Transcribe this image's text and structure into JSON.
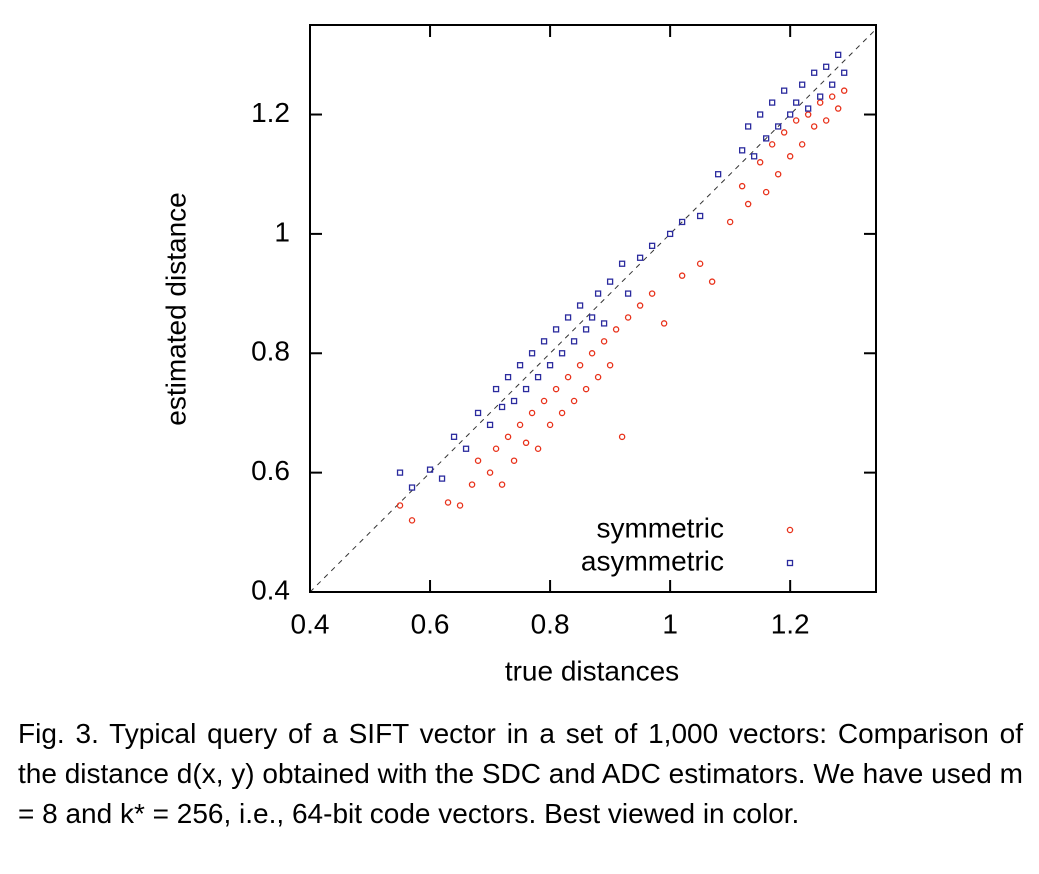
{
  "chart_data": {
    "type": "scatter",
    "xlabel": "true distances",
    "ylabel": "estimated distance",
    "xlim": [
      0.4,
      1.343
    ],
    "ylim": [
      0.4,
      1.35
    ],
    "xticks": [
      0.4,
      0.6,
      0.8,
      1,
      1.2
    ],
    "yticks": [
      0.4,
      0.6,
      0.8,
      1,
      1.2
    ],
    "legend": "lower right",
    "series": [
      {
        "name": "symmetric",
        "color": "#e8311a",
        "marker": "circle",
        "x": [
          0.55,
          0.57,
          0.63,
          0.65,
          0.67,
          0.68,
          0.7,
          0.71,
          0.72,
          0.73,
          0.74,
          0.75,
          0.76,
          0.77,
          0.78,
          0.79,
          0.8,
          0.81,
          0.82,
          0.83,
          0.84,
          0.85,
          0.86,
          0.87,
          0.88,
          0.89,
          0.9,
          0.91,
          0.92,
          0.93,
          0.95,
          0.97,
          0.99,
          1.02,
          1.05,
          1.07,
          1.1,
          1.12,
          1.13,
          1.15,
          1.16,
          1.17,
          1.18,
          1.19,
          1.2,
          1.21,
          1.22,
          1.23,
          1.24,
          1.25,
          1.26,
          1.27,
          1.28,
          1.29
        ],
        "values": [
          0.545,
          0.52,
          0.55,
          0.545,
          0.58,
          0.62,
          0.6,
          0.64,
          0.58,
          0.66,
          0.62,
          0.68,
          0.65,
          0.7,
          0.64,
          0.72,
          0.68,
          0.74,
          0.7,
          0.76,
          0.72,
          0.78,
          0.74,
          0.8,
          0.76,
          0.82,
          0.78,
          0.84,
          0.66,
          0.86,
          0.88,
          0.9,
          0.85,
          0.93,
          0.95,
          0.92,
          1.02,
          1.08,
          1.05,
          1.12,
          1.07,
          1.15,
          1.1,
          1.17,
          1.13,
          1.19,
          1.15,
          1.2,
          1.18,
          1.22,
          1.19,
          1.23,
          1.21,
          1.24
        ]
      },
      {
        "name": "asymmetric",
        "color": "#2b2b9e",
        "marker": "square",
        "x": [
          0.55,
          0.57,
          0.6,
          0.62,
          0.64,
          0.66,
          0.68,
          0.7,
          0.71,
          0.72,
          0.73,
          0.74,
          0.75,
          0.76,
          0.77,
          0.78,
          0.79,
          0.8,
          0.81,
          0.82,
          0.83,
          0.84,
          0.85,
          0.86,
          0.87,
          0.88,
          0.89,
          0.9,
          0.92,
          0.93,
          0.95,
          0.97,
          1.0,
          1.02,
          1.05,
          1.08,
          1.12,
          1.13,
          1.14,
          1.15,
          1.16,
          1.17,
          1.18,
          1.19,
          1.2,
          1.21,
          1.22,
          1.23,
          1.24,
          1.25,
          1.26,
          1.27,
          1.28,
          1.29
        ],
        "values": [
          0.6,
          0.575,
          0.605,
          0.59,
          0.66,
          0.64,
          0.7,
          0.68,
          0.74,
          0.71,
          0.76,
          0.72,
          0.78,
          0.74,
          0.8,
          0.76,
          0.82,
          0.78,
          0.84,
          0.8,
          0.86,
          0.82,
          0.88,
          0.84,
          0.86,
          0.9,
          0.85,
          0.92,
          0.95,
          0.9,
          0.96,
          0.98,
          1.0,
          1.02,
          1.03,
          1.1,
          1.14,
          1.18,
          1.13,
          1.2,
          1.16,
          1.22,
          1.18,
          1.24,
          1.2,
          1.22,
          1.25,
          1.21,
          1.27,
          1.23,
          1.28,
          1.25,
          1.3,
          1.27
        ]
      }
    ]
  },
  "caption": "Fig. 3. Typical query of a SIFT vector in a set of 1,000 vectors: Comparison of the distance d(x, y) obtained with the SDC and ADC estimators. We have used m = 8 and k* = 256, i.e., 64-bit code vectors. Best viewed in color."
}
